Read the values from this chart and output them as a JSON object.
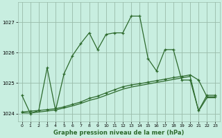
{
  "line1": {
    "x": [
      0,
      1,
      2,
      3,
      4,
      5,
      6,
      7,
      8,
      9,
      10,
      11,
      12,
      13,
      14,
      15,
      16,
      17,
      18,
      19,
      20,
      21,
      22,
      23
    ],
    "y": [
      1024.6,
      1024.0,
      1024.1,
      1025.5,
      1024.1,
      1025.3,
      1025.9,
      1026.3,
      1026.65,
      1026.1,
      1026.6,
      1026.65,
      1026.65,
      1027.2,
      1027.2,
      1025.8,
      1025.4,
      1026.1,
      1026.1,
      1025.1,
      1025.1,
      1024.1,
      1024.6,
      1024.6
    ]
  },
  "line2": {
    "x": [
      0,
      1,
      2,
      3,
      4,
      5,
      6,
      7,
      8,
      9,
      10,
      11,
      12,
      13,
      14,
      15,
      16,
      17,
      18,
      19,
      20,
      21,
      22,
      23
    ],
    "y": [
      1024.05,
      1024.08,
      1024.1,
      1024.13,
      1024.16,
      1024.22,
      1024.3,
      1024.38,
      1024.5,
      1024.57,
      1024.68,
      1024.78,
      1024.88,
      1024.94,
      1024.98,
      1025.03,
      1025.08,
      1025.13,
      1025.18,
      1025.22,
      1025.27,
      1025.1,
      1024.55,
      1024.55
    ]
  },
  "line3": {
    "x": [
      0,
      1,
      2,
      3,
      4,
      5,
      6,
      7,
      8,
      9,
      10,
      11,
      12,
      13,
      14,
      15,
      16,
      17,
      18,
      19,
      20,
      21,
      22,
      23
    ],
    "y": [
      1024.02,
      1024.02,
      1024.05,
      1024.08,
      1024.12,
      1024.18,
      1024.25,
      1024.33,
      1024.43,
      1024.5,
      1024.6,
      1024.7,
      1024.8,
      1024.87,
      1024.92,
      1024.97,
      1025.02,
      1025.07,
      1025.12,
      1025.17,
      1025.22,
      1024.08,
      1024.52,
      1024.52
    ]
  },
  "line_color": "#2d6a2d",
  "background_color": "#c8eee0",
  "grid_color": "#99bbaa",
  "xlabel": "Graphe pression niveau de la mer (hPa)",
  "ylim": [
    1023.75,
    1027.65
  ],
  "xlim": [
    -0.5,
    23.5
  ],
  "yticks": [
    1024,
    1025,
    1026,
    1027
  ],
  "xticks": [
    0,
    1,
    2,
    3,
    4,
    5,
    6,
    7,
    8,
    9,
    10,
    11,
    12,
    13,
    14,
    15,
    16,
    17,
    18,
    19,
    20,
    21,
    22,
    23
  ]
}
